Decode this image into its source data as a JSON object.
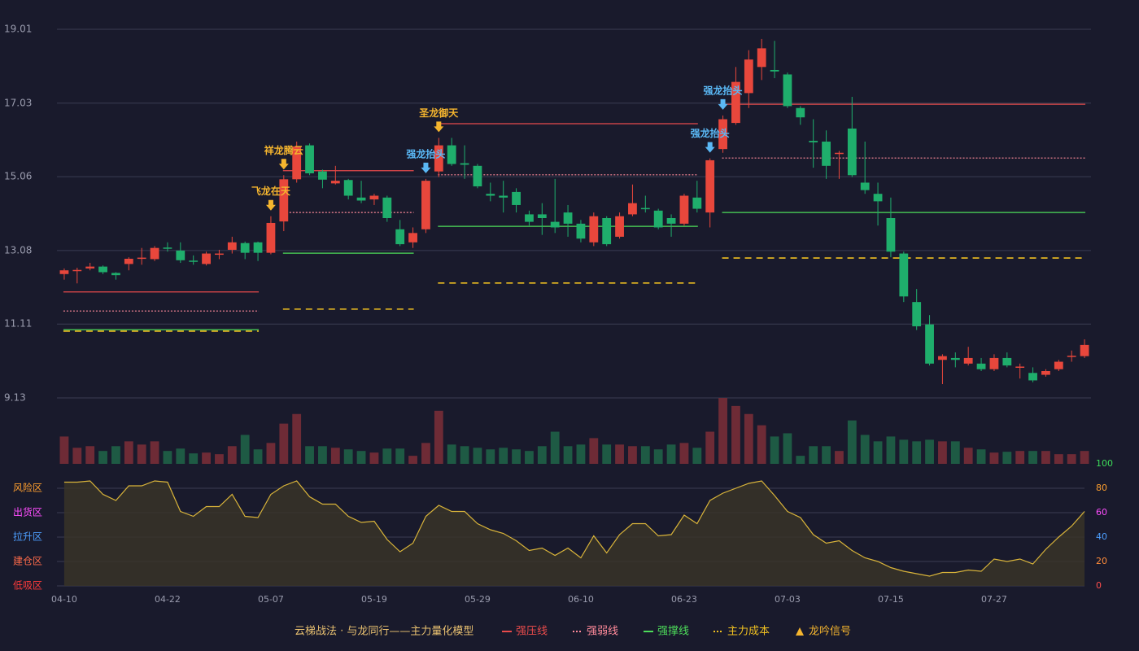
{
  "chart_data": {
    "type": "candlestick",
    "categories": [
      "04-10",
      null,
      null,
      null,
      null,
      null,
      null,
      null,
      "04-22",
      null,
      null,
      null,
      null,
      null,
      null,
      null,
      "05-07",
      null,
      null,
      null,
      null,
      null,
      null,
      null,
      "05-19",
      null,
      null,
      null,
      null,
      null,
      null,
      null,
      "05-29",
      null,
      null,
      null,
      null,
      null,
      null,
      null,
      "06-10",
      null,
      null,
      null,
      null,
      null,
      null,
      null,
      "06-23",
      null,
      null,
      null,
      null,
      null,
      null,
      null,
      "07-03",
      null,
      null,
      null,
      null,
      null,
      null,
      null,
      "07-15",
      null,
      null,
      null,
      null,
      null,
      null,
      null,
      "07-27",
      null,
      null,
      null,
      null,
      null,
      null,
      null
    ],
    "open": [
      12.45,
      12.55,
      12.6,
      12.65,
      12.48,
      12.72,
      12.87,
      12.85,
      13.16,
      13.08,
      12.81,
      12.72,
      12.98,
      13.1,
      13.28,
      13.3,
      13.02,
      13.86,
      14.99,
      15.9,
      15.2,
      14.88,
      14.97,
      14.5,
      14.45,
      14.5,
      13.65,
      13.3,
      13.65,
      15.2,
      15.9,
      15.42,
      15.35,
      14.6,
      14.55,
      14.65,
      14.05,
      14.05,
      13.85,
      14.1,
      13.8,
      13.3,
      13.95,
      13.45,
      14.05,
      14.22,
      14.15,
      13.95,
      13.8,
      14.5,
      14.1,
      15.8,
      16.5,
      17.3,
      18.0,
      17.92,
      17.8,
      16.9,
      16.02,
      16.0,
      15.68,
      16.35,
      14.9,
      14.6,
      13.95,
      13.0,
      11.7,
      11.1,
      10.15,
      10.2,
      10.05,
      10.05,
      9.9,
      10.2,
      9.95,
      9.8,
      9.75,
      9.9,
      10.24,
      10.25
    ],
    "high": [
      12.6,
      12.62,
      12.75,
      12.68,
      12.5,
      12.9,
      13.15,
      13.2,
      13.3,
      13.3,
      12.95,
      13.05,
      13.1,
      13.45,
      13.32,
      13.32,
      14.0,
      15.1,
      16.0,
      15.95,
      15.25,
      15.35,
      15.0,
      14.95,
      14.6,
      14.55,
      13.9,
      13.7,
      15.0,
      16.1,
      16.1,
      15.9,
      15.4,
      14.9,
      14.95,
      14.75,
      14.15,
      14.35,
      15.0,
      14.3,
      13.9,
      14.1,
      14.0,
      14.1,
      14.85,
      14.55,
      14.2,
      14.05,
      14.6,
      14.95,
      15.55,
      16.7,
      18.0,
      18.45,
      18.75,
      18.7,
      17.85,
      16.95,
      16.6,
      16.3,
      15.75,
      17.2,
      16.0,
      14.9,
      14.5,
      13.05,
      12.05,
      11.35,
      10.3,
      10.35,
      10.5,
      10.2,
      10.3,
      10.35,
      10.05,
      9.95,
      9.9,
      10.15,
      10.4,
      10.7
    ],
    "low": [
      12.3,
      12.2,
      12.55,
      12.45,
      12.3,
      12.55,
      12.7,
      12.8,
      13.05,
      12.75,
      12.7,
      12.68,
      12.85,
      13.0,
      12.85,
      12.8,
      12.98,
      13.6,
      14.9,
      15.1,
      14.75,
      14.85,
      14.45,
      14.35,
      14.3,
      13.85,
      13.2,
      13.15,
      13.55,
      15.05,
      15.35,
      15.0,
      14.75,
      14.4,
      14.1,
      14.1,
      13.75,
      13.5,
      13.55,
      13.45,
      13.3,
      13.2,
      13.2,
      13.4,
      14.0,
      14.1,
      13.65,
      13.45,
      13.75,
      14.1,
      13.7,
      15.7,
      16.45,
      16.9,
      17.65,
      17.7,
      16.9,
      16.45,
      15.3,
      15.0,
      15.0,
      15.05,
      14.6,
      13.75,
      12.9,
      11.7,
      10.95,
      10.0,
      9.5,
      9.95,
      10.0,
      9.85,
      9.85,
      9.95,
      9.65,
      9.55,
      9.7,
      9.85,
      10.1,
      10.2
    ],
    "close": [
      12.55,
      12.56,
      12.65,
      12.5,
      12.42,
      12.86,
      12.89,
      13.15,
      13.15,
      12.82,
      12.8,
      13.0,
      13.0,
      13.3,
      13.02,
      13.02,
      13.82,
      14.99,
      15.87,
      15.15,
      14.98,
      14.95,
      14.55,
      14.42,
      14.55,
      13.95,
      13.25,
      13.55,
      14.95,
      15.9,
      15.4,
      15.38,
      14.8,
      14.55,
      14.5,
      14.3,
      13.85,
      13.95,
      13.7,
      13.8,
      13.4,
      14.0,
      13.25,
      14.0,
      14.35,
      14.2,
      13.7,
      13.8,
      14.55,
      14.2,
      15.5,
      16.6,
      17.6,
      18.2,
      18.5,
      17.88,
      16.95,
      16.65,
      15.98,
      15.35,
      15.7,
      15.1,
      14.7,
      14.4,
      13.05,
      11.85,
      11.05,
      10.05,
      10.25,
      10.15,
      10.2,
      9.9,
      10.2,
      10.0,
      9.97,
      9.6,
      9.85,
      10.1,
      10.26,
      10.55
    ],
    "up_color": "#e8473c",
    "down_color": "#1fae6c",
    "ylim": [
      9.13,
      19.01
    ],
    "yticks": [
      9.13,
      11.11,
      13.08,
      15.06,
      17.03,
      19.01
    ],
    "volume": [
      34,
      20,
      22,
      16,
      22,
      28,
      24,
      28,
      16,
      19,
      13,
      14,
      12,
      22,
      36,
      18,
      26,
      50,
      62,
      22,
      22,
      20,
      18,
      16,
      14,
      19,
      19,
      10,
      26,
      66,
      24,
      22,
      20,
      18,
      20,
      18,
      16,
      22,
      40,
      22,
      24,
      32,
      24,
      24,
      22,
      22,
      18,
      24,
      26,
      20,
      40,
      82,
      72,
      62,
      48,
      34,
      38,
      10,
      22,
      22,
      16,
      54,
      36,
      28,
      34,
      30,
      28,
      30,
      28,
      28,
      20,
      18,
      14,
      15,
      16,
      16,
      16,
      12,
      12,
      16
    ],
    "vlim": [
      0,
      82
    ],
    "oscillator": {
      "color": "#d9b43a",
      "values": [
        85,
        85,
        86,
        75,
        70,
        82,
        82,
        86,
        85,
        61,
        57,
        65,
        65,
        75,
        57,
        56,
        75,
        82,
        86,
        73,
        67,
        67,
        57,
        52,
        53,
        38,
        28,
        35,
        57,
        66,
        61,
        61,
        51,
        46,
        43,
        37,
        29,
        31,
        25,
        31,
        23,
        41,
        27,
        42,
        51,
        51,
        41,
        42,
        58,
        51,
        70,
        76,
        80,
        84,
        86,
        74,
        61,
        56,
        42,
        35,
        37,
        29,
        23,
        20,
        15,
        12,
        10,
        8,
        11,
        11,
        13,
        12,
        22,
        20,
        22,
        18,
        30,
        40,
        49,
        61
      ],
      "ylim": [
        0,
        100
      ],
      "yticks": [
        0,
        20,
        40,
        60,
        80,
        100
      ],
      "ytick_colors": [
        "#ff4d4d",
        "#ff8c3a",
        "#4d9fff",
        "#ff4dff",
        "#ff9f2e",
        "#3ddc5a"
      ],
      "zones": [
        {
          "value": 80,
          "label": "风险区",
          "color": "#ff9f2e"
        },
        {
          "value": 60,
          "label": "出货区",
          "color": "#ff4dff"
        },
        {
          "value": 40,
          "label": "拉升区",
          "color": "#4d9fff"
        },
        {
          "value": 20,
          "label": "建仓区",
          "color": "#ff6b4a"
        },
        {
          "value": 0,
          "label": "低吸区",
          "color": "#ff3b3b"
        }
      ]
    },
    "lines": [
      {
        "key": "resistance",
        "name": "强压线",
        "color": "#e84b4b",
        "dash": "solid"
      },
      {
        "key": "pivot",
        "name": "强弱线",
        "color": "#ff8a9a",
        "dash": "dotted"
      },
      {
        "key": "support",
        "name": "强撑线",
        "color": "#4ddc5a",
        "dash": "solid"
      },
      {
        "key": "cost",
        "name": "主力成本",
        "color": "#f0c020",
        "dash": "dashed"
      }
    ],
    "levels": [
      {
        "from": 0,
        "to": 15,
        "resistance": 11.97,
        "pivot": 11.46,
        "support": 10.96,
        "cost": 10.92
      },
      {
        "from": 17,
        "to": 27,
        "resistance": 15.22,
        "pivot": 14.1,
        "support": 13.01,
        "cost": 11.51
      },
      {
        "from": 29,
        "to": 49,
        "resistance": 16.48,
        "pivot": 15.11,
        "support": 13.73,
        "cost": 12.21
      },
      {
        "from": 51,
        "to": 79,
        "resistance": 17.0,
        "pivot": 15.56,
        "support": 14.1,
        "cost": 12.88
      }
    ],
    "signals": [
      {
        "index": 16,
        "label": "飞龙在天",
        "color": "#f5b52e"
      },
      {
        "index": 17,
        "label": "祥龙腾云",
        "color": "#f5b52e"
      },
      {
        "index": 28,
        "label": "强龙抬头",
        "color": "#5ab8f5"
      },
      {
        "index": 29,
        "label": "圣龙御天",
        "color": "#f5b52e"
      },
      {
        "index": 50,
        "label": "强龙抬头",
        "color": "#5ab8f5"
      },
      {
        "index": 51,
        "label": "强龙抬头",
        "color": "#5ab8f5"
      }
    ],
    "signal_legend": {
      "name": "龙吟信号",
      "color": "#f5b52e"
    },
    "legend_title": "云梯战法 · 与龙同行——主力量化模型"
  }
}
